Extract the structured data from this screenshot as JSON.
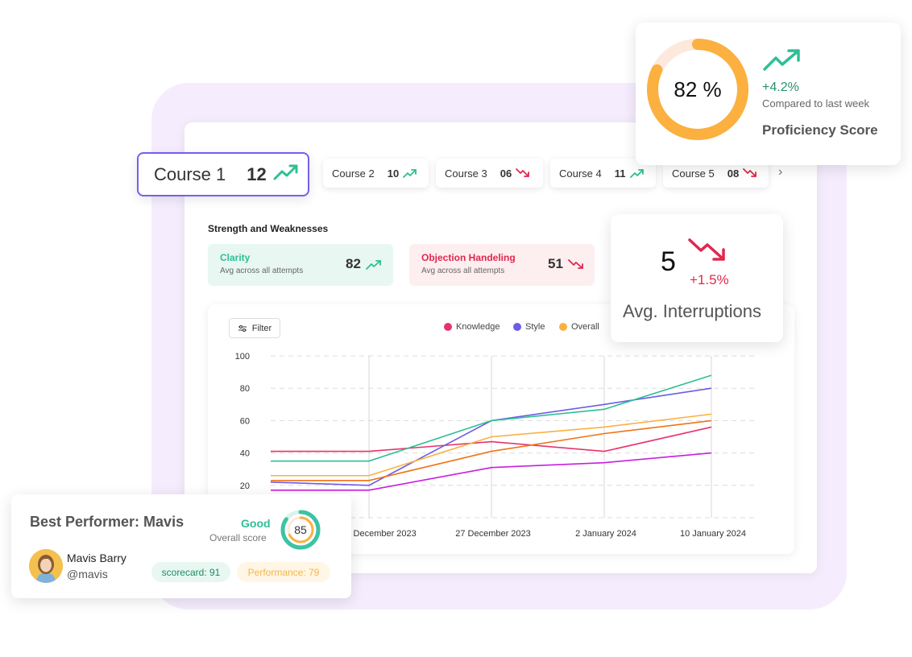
{
  "courses": [
    {
      "name": "Course 1",
      "value": "12",
      "trend": "up"
    },
    {
      "name": "Course 2",
      "value": "10",
      "trend": "up"
    },
    {
      "name": "Course 3",
      "value": "06",
      "trend": "down"
    },
    {
      "name": "Course 4",
      "value": "11",
      "trend": "up"
    },
    {
      "name": "Course 5",
      "value": "08",
      "trend": "down"
    }
  ],
  "strengths": {
    "title": "Strength and Weaknesses",
    "items": [
      {
        "label": "Clarity",
        "sub": "Avg across all  attempts",
        "value": "82",
        "trend": "up"
      },
      {
        "label": "Objection Handeling",
        "sub": "Avg across all  attempts",
        "value": "51",
        "trend": "down"
      }
    ]
  },
  "filter": {
    "label": "Filter"
  },
  "proficiency": {
    "value": "82 %",
    "fraction": 0.82,
    "delta": "+4.2%",
    "compare": "Compared to last week",
    "title": "Proficiency Score"
  },
  "interruptions": {
    "value": "5",
    "delta": "+1.5%",
    "title": "Avg. Interruptions"
  },
  "best_performer": {
    "title": "Best Performer: Mavis",
    "rating": "Good",
    "overall_label": "Overall score",
    "score": "85",
    "score_fraction": 0.85,
    "name": "Mavis Barry",
    "handle": "@mavis",
    "scorecard": "scorecard: 91",
    "performance": "Performance: 79"
  },
  "colors": {
    "accent_purple": "#7a5cf0",
    "up_green": "#2ebf95",
    "down_red": "#e0284f",
    "ring_orange": "#fbb040",
    "ring_teal": "#3cc3a4"
  },
  "chart_data": {
    "type": "line",
    "x": [
      "20 December 2023",
      "27 December 2023",
      "2 January 2024",
      "10 January 2024"
    ],
    "ylim": [
      0,
      100
    ],
    "yticks": [
      20,
      40,
      60,
      80,
      100
    ],
    "legend": [
      "Knowledge",
      "Style",
      "Overall"
    ],
    "series": [
      {
        "name": "Knowledge",
        "color": "#e8336a",
        "points": [
          [
            0,
            41
          ],
          [
            1,
            41
          ],
          [
            2,
            47
          ],
          [
            3,
            41
          ],
          [
            4,
            56
          ]
        ]
      },
      {
        "name": "Style",
        "color": "#6c5ce7",
        "points": [
          [
            0,
            22
          ],
          [
            1,
            20
          ],
          [
            2,
            60
          ],
          [
            3,
            70
          ],
          [
            4,
            80
          ]
        ]
      },
      {
        "name": "Overall",
        "color": "#fbb040",
        "points": [
          [
            0,
            26
          ],
          [
            1,
            26
          ],
          [
            2,
            50
          ],
          [
            3,
            56
          ],
          [
            4,
            64
          ]
        ]
      },
      {
        "color": "#2ebf95",
        "points": [
          [
            0,
            35
          ],
          [
            1,
            35
          ],
          [
            2,
            60
          ],
          [
            3,
            67
          ],
          [
            4,
            88
          ]
        ]
      },
      {
        "color": "#f07317",
        "points": [
          [
            0,
            23
          ],
          [
            1,
            23
          ],
          [
            2,
            41
          ],
          [
            3,
            52
          ],
          [
            4,
            60
          ]
        ]
      },
      {
        "color": "#c81ee0",
        "points": [
          [
            0,
            17
          ],
          [
            1,
            17
          ],
          [
            2,
            31
          ],
          [
            3,
            34
          ],
          [
            4,
            40
          ]
        ]
      }
    ]
  }
}
